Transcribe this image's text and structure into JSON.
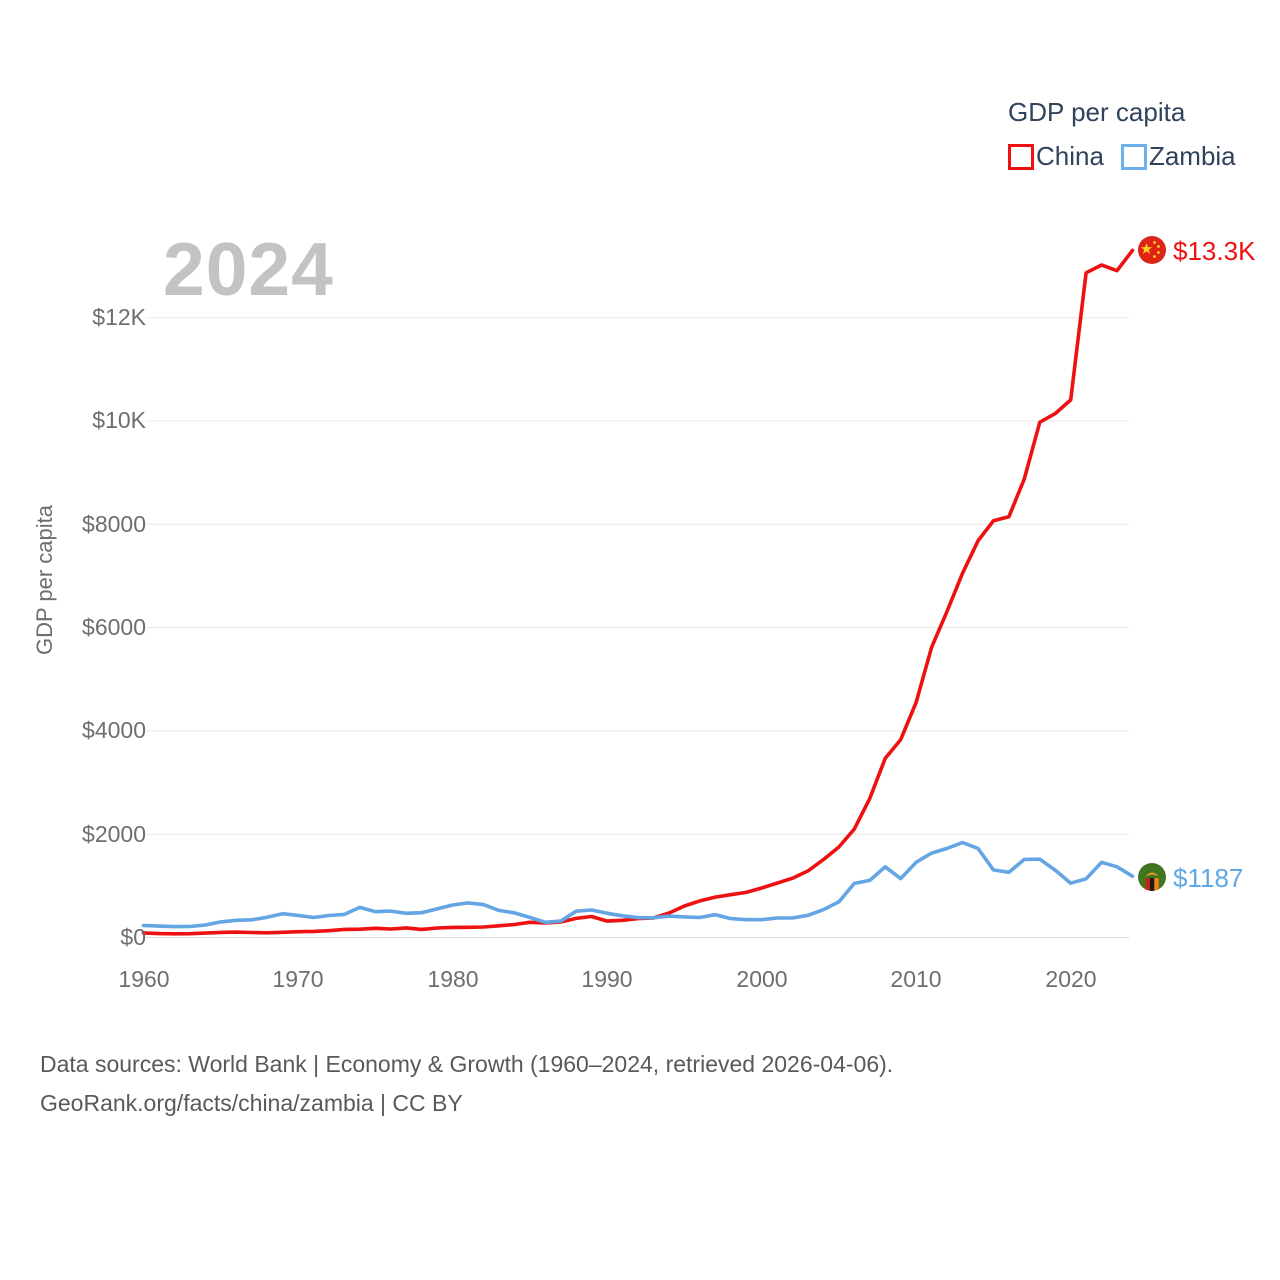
{
  "page": {
    "year_watermark": "2024"
  },
  "legend": {
    "title": "GDP per capita",
    "series": [
      {
        "label": "China",
        "color": "#ee1111"
      },
      {
        "label": "Zambia",
        "color": "#6db0ec"
      }
    ]
  },
  "axes": {
    "ylabel": "GDP per capita",
    "yticks": [
      "$12K",
      "$10K",
      "$8000",
      "$6000",
      "$4000",
      "$2000",
      "$0"
    ],
    "xticks": [
      "1960",
      "1970",
      "1980",
      "1990",
      "2000",
      "2010",
      "2020"
    ]
  },
  "chart_data": {
    "type": "line",
    "title": "GDP per capita",
    "xlabel": "",
    "ylabel": "GDP per capita",
    "xlim": [
      1960,
      2024
    ],
    "ylim": [
      0,
      13400
    ],
    "ytick_values": [
      0,
      2000,
      4000,
      6000,
      8000,
      10000,
      12000
    ],
    "xtick_values": [
      1960,
      1970,
      1980,
      1990,
      2000,
      2010,
      2020
    ],
    "grid": "horizontal",
    "legend_position": "top-right",
    "x": [
      1960,
      1961,
      1962,
      1963,
      1964,
      1965,
      1966,
      1967,
      1968,
      1969,
      1970,
      1971,
      1972,
      1973,
      1974,
      1975,
      1976,
      1977,
      1978,
      1979,
      1980,
      1981,
      1982,
      1983,
      1984,
      1985,
      1986,
      1987,
      1988,
      1989,
      1990,
      1991,
      1992,
      1993,
      1994,
      1995,
      1996,
      1997,
      1998,
      1999,
      2000,
      2001,
      2002,
      2003,
      2004,
      2005,
      2006,
      2007,
      2008,
      2009,
      2010,
      2011,
      2012,
      2013,
      2014,
      2015,
      2016,
      2017,
      2018,
      2019,
      2020,
      2021,
      2022,
      2023,
      2024
    ],
    "series": [
      {
        "name": "China",
        "color": "#ee1111",
        "values": [
          90,
          76,
          71,
          74,
          85,
          98,
          104,
          97,
          91,
          100,
          113,
          119,
          132,
          157,
          160,
          178,
          165,
          185,
          156,
          184,
          195,
          197,
          203,
          226,
          251,
          295,
          282,
          301,
          370,
          407,
          318,
          333,
          366,
          377,
          473,
          610,
          709,
          782,
          829,
          873,
          959,
          1053,
          1149,
          1289,
          1509,
          1753,
          2099,
          2694,
          3468,
          3832,
          4550,
          5618,
          6317,
          7051,
          7679,
          8067,
          8148,
          8879,
          9977,
          10144,
          10409,
          12870,
          13020,
          12910,
          13303
        ]
      },
      {
        "name": "Zambia",
        "color": "#64a5e4",
        "values": [
          232,
          220,
          212,
          213,
          242,
          303,
          333,
          343,
          391,
          461,
          427,
          388,
          425,
          447,
          582,
          500,
          512,
          469,
          480,
          553,
          630,
          669,
          637,
          524,
          477,
          390,
          295,
          317,
          510,
          533,
          468,
          420,
          386,
          382,
          414,
          399,
          388,
          441,
          366,
          345,
          345,
          378,
          377,
          429,
          538,
          691,
          1047,
          1105,
          1369,
          1140,
          1456,
          1635,
          1725,
          1840,
          1726,
          1308,
          1263,
          1513,
          1516,
          1305,
          1051,
          1137,
          1456,
          1369,
          1187
        ]
      }
    ],
    "end_labels": {
      "china": "$13.3K",
      "zambia": "$1187"
    }
  },
  "footer": {
    "line1": "Data sources: World Bank | Economy & Growth (1960–2024, retrieved 2026-04-06).",
    "line2": "GeoRank.org/facts/china/zambia | CC BY"
  }
}
